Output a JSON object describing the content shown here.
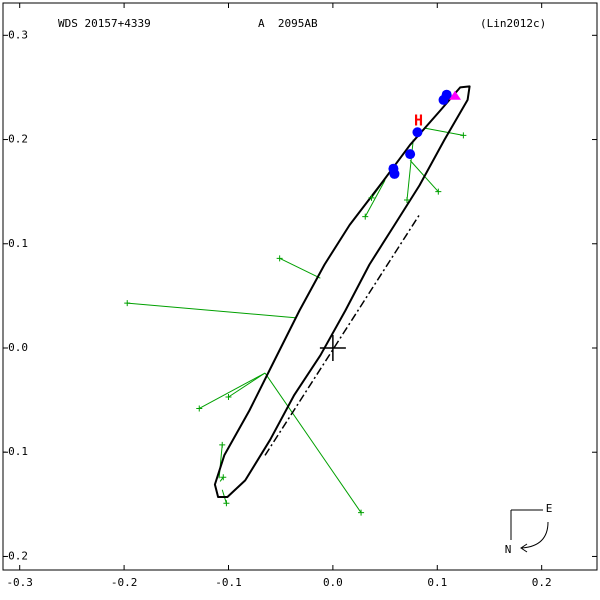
{
  "chart_data": {
    "type": "orbit",
    "title": "WDS 20157+4339",
    "subtitle": "A  2095AB",
    "reference": "(Lin2012c)",
    "xlim": [
      -0.316,
      0.253
    ],
    "ylim": [
      -0.213,
      0.331
    ],
    "xticks": [
      -0.3,
      -0.2,
      -0.1,
      {
        "value": 0,
        "label": "0.0"
      },
      0.1,
      0.2
    ],
    "yticks": [
      0.3,
      0.2,
      0.1,
      {
        "value": 0,
        "label": "-0.0"
      },
      -0.1,
      -0.2
    ],
    "orbit": {
      "color": "#000000",
      "x": [
        0.131,
        0.129,
        0.107,
        0.083,
        0.059,
        0.035,
        0.012,
        -0.012,
        -0.037,
        -0.06,
        -0.084,
        -0.101,
        -0.11,
        -0.113,
        -0.104,
        -0.08,
        -0.056,
        -0.032,
        -0.008,
        0.016,
        0.045,
        0.074,
        0.103,
        0.122
      ],
      "y": [
        0.251,
        0.238,
        0.2,
        0.156,
        0.118,
        0.08,
        0.036,
        -0.007,
        -0.045,
        -0.088,
        -0.127,
        -0.143,
        -0.143,
        -0.131,
        -0.103,
        -0.06,
        -0.012,
        0.036,
        0.08,
        0.118,
        0.156,
        0.195,
        0.228,
        0.25
      ]
    },
    "node_line": {
      "color": "#000000",
      "x": [
        -0.065,
        0.083
      ],
      "y": [
        -0.103,
        0.128
      ]
    },
    "primary": {
      "x": 0,
      "y": 0
    },
    "measurements": {
      "color": "#00a000",
      "x": [
        0.125,
        0.101,
        0.071,
        0.037,
        0.031,
        -0.051,
        -0.197,
        -0.128,
        -0.1,
        0.027,
        -0.106,
        -0.105,
        -0.102
      ],
      "y": [
        0.204,
        0.15,
        0.142,
        0.144,
        0.126,
        0.086,
        0.043,
        -0.058,
        -0.047,
        -0.158,
        -0.093,
        -0.124,
        -0.149
      ],
      "fit_x": [
        0.088,
        0.074,
        0.077,
        0.055,
        0.05,
        -0.012,
        -0.036,
        -0.065,
        -0.065,
        -0.065,
        -0.109,
        -0.108,
        -0.106
      ],
      "fit_y": [
        0.211,
        0.18,
        0.2,
        0.169,
        0.161,
        0.067,
        0.029,
        -0.024,
        -0.024,
        -0.024,
        -0.125,
        -0.128,
        -0.136
      ]
    },
    "speckle": {
      "color": "#0000ff",
      "x": [
        0.081,
        0.074,
        0.058,
        0.059,
        0.106,
        0.109
      ],
      "y": [
        0.207,
        0.186,
        0.172,
        0.167,
        0.238,
        0.243
      ]
    },
    "other": {
      "color": "#ff00ff",
      "x": [
        0.117
      ],
      "y": [
        0.242
      ]
    },
    "hipparcos": {
      "label": "H",
      "color": "#ff0000",
      "x": 0.082,
      "y": 0.218
    },
    "compass": {
      "east": "E",
      "north": "N"
    }
  }
}
